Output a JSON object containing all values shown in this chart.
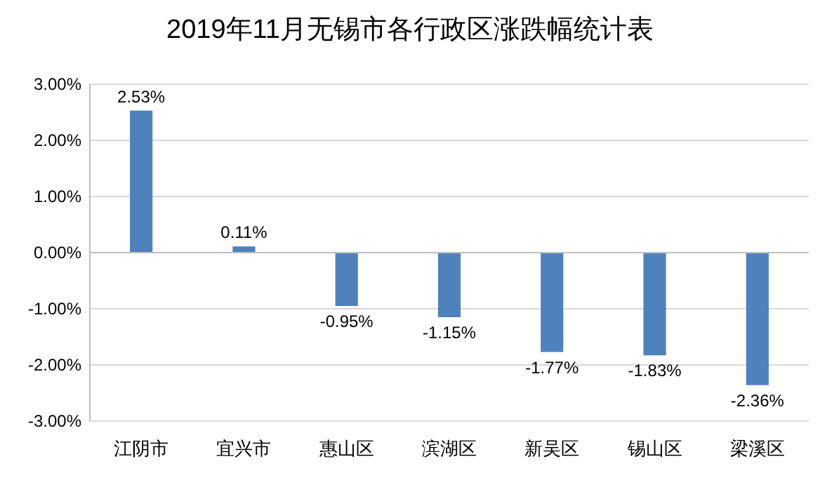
{
  "chart_data": {
    "type": "bar",
    "title": "2019年11月无锡市各行政区涨跌幅统计表",
    "categories": [
      "江阴市",
      "宜兴市",
      "惠山区",
      "滨湖区",
      "新吴区",
      "锡山区",
      "梁溪区"
    ],
    "values": [
      2.53,
      0.11,
      -0.95,
      -1.15,
      -1.77,
      -1.83,
      -2.36
    ],
    "value_labels": [
      "2.53%",
      "0.11%",
      "-0.95%",
      "-1.15%",
      "-1.77%",
      "-1.83%",
      "-2.36%"
    ],
    "color": "#4f81bd",
    "ylim": [
      -3,
      3
    ],
    "yticks": [
      {
        "value": 3,
        "label": "3.00%"
      },
      {
        "value": 2,
        "label": "2.00%"
      },
      {
        "value": 1,
        "label": "1.00%"
      },
      {
        "value": 0,
        "label": "0.00%"
      },
      {
        "value": -1,
        "label": "-1.00%"
      },
      {
        "value": -2,
        "label": "-2.00%"
      },
      {
        "value": -3,
        "label": "-3.00%"
      }
    ],
    "grid": "y"
  }
}
